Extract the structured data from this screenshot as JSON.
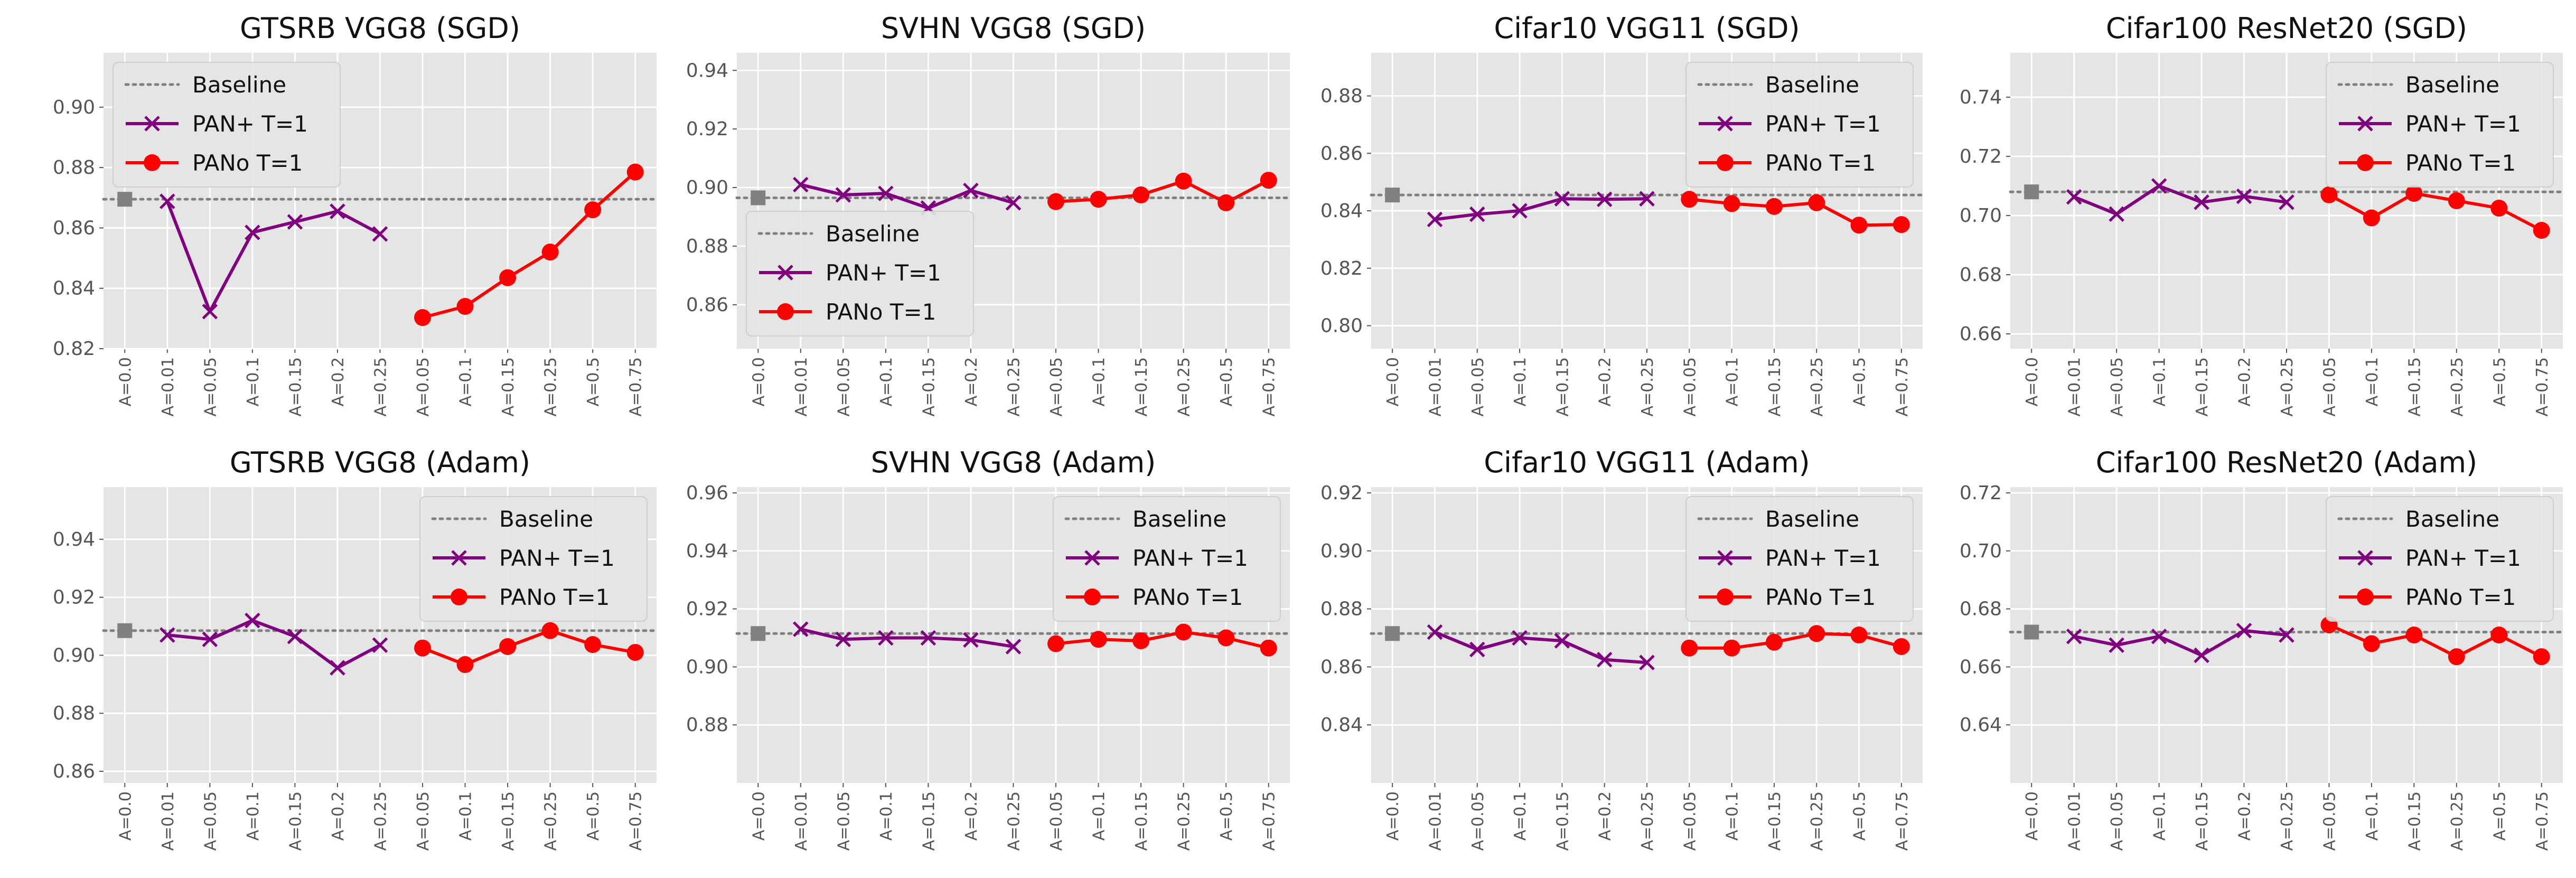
{
  "chart_data": [
    {
      "type": "line",
      "title": "GTSRB VGG8 (SGD)",
      "yticks": [
        "0.82",
        "0.84",
        "0.86",
        "0.88",
        "0.90"
      ],
      "ylim": [
        0.82,
        0.918
      ],
      "baseline": 0.8695,
      "legend": "top-left",
      "x_labels": [
        "A=0.0",
        "A=0.01",
        "A=0.05",
        "A=0.1",
        "A=0.15",
        "A=0.2",
        "A=0.25",
        "A=0.05",
        "A=0.1",
        "A=0.15",
        "A=0.25",
        "A=0.5",
        "A=0.75"
      ],
      "series": [
        {
          "name": "Baseline",
          "kind": "baseline",
          "values": [
            0.8695
          ]
        },
        {
          "name": "PAN+ T=1",
          "kind": "plus",
          "values": [
            0.8688,
            0.8323,
            0.8585,
            0.862,
            0.8655,
            0.858
          ]
        },
        {
          "name": "PANo T=1",
          "kind": "circ",
          "values": [
            0.8303,
            0.834,
            0.8435,
            0.852,
            0.866,
            0.8785
          ]
        }
      ]
    },
    {
      "type": "line",
      "title": "SVHN VGG8 (SGD)",
      "yticks": [
        "0.86",
        "0.88",
        "0.90",
        "0.92",
        "0.94"
      ],
      "ylim": [
        0.845,
        0.946
      ],
      "baseline": 0.8965,
      "legend": "middle-left",
      "x_labels": [
        "A=0.0",
        "A=0.01",
        "A=0.05",
        "A=0.1",
        "A=0.15",
        "A=0.2",
        "A=0.25",
        "A=0.05",
        "A=0.1",
        "A=0.15",
        "A=0.25",
        "A=0.5",
        "A=0.75"
      ],
      "series": [
        {
          "name": "Baseline",
          "kind": "baseline",
          "values": [
            0.8965
          ]
        },
        {
          "name": "PAN+ T=1",
          "kind": "plus",
          "values": [
            0.901,
            0.8975,
            0.898,
            0.893,
            0.899,
            0.8948
          ]
        },
        {
          "name": "PANo T=1",
          "kind": "circ",
          "values": [
            0.8952,
            0.896,
            0.8975,
            0.9022,
            0.8948,
            0.9025
          ]
        }
      ]
    },
    {
      "type": "line",
      "title": "Cifar10 VGG11 (SGD)",
      "yticks": [
        "0.80",
        "0.82",
        "0.84",
        "0.86",
        "0.88"
      ],
      "ylim": [
        0.792,
        0.895
      ],
      "baseline": 0.8455,
      "legend": "top-right",
      "x_labels": [
        "A=0.0",
        "A=0.01",
        "A=0.05",
        "A=0.1",
        "A=0.15",
        "A=0.2",
        "A=0.25",
        "A=0.05",
        "A=0.1",
        "A=0.15",
        "A=0.25",
        "A=0.5",
        "A=0.75"
      ],
      "series": [
        {
          "name": "Baseline",
          "kind": "baseline",
          "values": [
            0.8455
          ]
        },
        {
          "name": "PAN+ T=1",
          "kind": "plus",
          "values": [
            0.837,
            0.8388,
            0.84,
            0.8442,
            0.844,
            0.8442
          ]
        },
        {
          "name": "PANo T=1",
          "kind": "circ",
          "values": [
            0.844,
            0.8425,
            0.8415,
            0.8428,
            0.835,
            0.8352
          ]
        }
      ]
    },
    {
      "type": "line",
      "title": "Cifar100 ResNet20 (SGD)",
      "yticks": [
        "0.66",
        "0.68",
        "0.70",
        "0.72",
        "0.74"
      ],
      "ylim": [
        0.655,
        0.755
      ],
      "baseline": 0.708,
      "legend": "top-right",
      "x_labels": [
        "A=0.0",
        "A=0.01",
        "A=0.05",
        "A=0.1",
        "A=0.15",
        "A=0.2",
        "A=0.25",
        "A=0.05",
        "A=0.1",
        "A=0.15",
        "A=0.25",
        "A=0.5",
        "A=0.75"
      ],
      "series": [
        {
          "name": "Baseline",
          "kind": "baseline",
          "values": [
            0.708
          ]
        },
        {
          "name": "PAN+ T=1",
          "kind": "plus",
          "values": [
            0.7063,
            0.7005,
            0.71,
            0.7045,
            0.7065,
            0.7045
          ]
        },
        {
          "name": "PANo T=1",
          "kind": "circ",
          "values": [
            0.707,
            0.6992,
            0.7075,
            0.705,
            0.7025,
            0.695
          ]
        }
      ]
    },
    {
      "type": "line",
      "title": "GTSRB VGG8 (Adam)",
      "yticks": [
        "0.86",
        "0.88",
        "0.90",
        "0.92",
        "0.94"
      ],
      "ylim": [
        0.856,
        0.958
      ],
      "baseline": 0.9085,
      "legend": "top-right",
      "x_labels": [
        "A=0.0",
        "A=0.01",
        "A=0.05",
        "A=0.1",
        "A=0.15",
        "A=0.2",
        "A=0.25",
        "A=0.05",
        "A=0.1",
        "A=0.15",
        "A=0.25",
        "A=0.5",
        "A=0.75"
      ],
      "series": [
        {
          "name": "Baseline",
          "kind": "baseline",
          "values": [
            0.9085
          ]
        },
        {
          "name": "PAN+ T=1",
          "kind": "plus",
          "values": [
            0.907,
            0.9055,
            0.912,
            0.9065,
            0.8957,
            0.9035
          ]
        },
        {
          "name": "PANo T=1",
          "kind": "circ",
          "values": [
            0.9025,
            0.8968,
            0.903,
            0.9085,
            0.9037,
            0.901
          ]
        }
      ]
    },
    {
      "type": "line",
      "title": "SVHN VGG8 (Adam)",
      "yticks": [
        "0.88",
        "0.90",
        "0.92",
        "0.94",
        "0.96"
      ],
      "ylim": [
        0.86,
        0.962
      ],
      "baseline": 0.9115,
      "legend": "top-right",
      "x_labels": [
        "A=0.0",
        "A=0.01",
        "A=0.05",
        "A=0.1",
        "A=0.15",
        "A=0.2",
        "A=0.25",
        "A=0.05",
        "A=0.1",
        "A=0.15",
        "A=0.25",
        "A=0.5",
        "A=0.75"
      ],
      "series": [
        {
          "name": "Baseline",
          "kind": "baseline",
          "values": [
            0.9115
          ]
        },
        {
          "name": "PAN+ T=1",
          "kind": "plus",
          "values": [
            0.913,
            0.9095,
            0.91,
            0.91,
            0.9093,
            0.907
          ]
        },
        {
          "name": "PANo T=1",
          "kind": "circ",
          "values": [
            0.908,
            0.9095,
            0.909,
            0.912,
            0.91,
            0.9065
          ]
        }
      ]
    },
    {
      "type": "line",
      "title": "Cifar10 VGG11 (Adam)",
      "yticks": [
        "0.84",
        "0.86",
        "0.88",
        "0.90",
        "0.92"
      ],
      "ylim": [
        0.82,
        0.922
      ],
      "baseline": 0.8715,
      "legend": "top-right",
      "x_labels": [
        "A=0.0",
        "A=0.01",
        "A=0.05",
        "A=0.1",
        "A=0.15",
        "A=0.2",
        "A=0.25",
        "A=0.05",
        "A=0.1",
        "A=0.15",
        "A=0.25",
        "A=0.5",
        "A=0.75"
      ],
      "series": [
        {
          "name": "Baseline",
          "kind": "baseline",
          "values": [
            0.8715
          ]
        },
        {
          "name": "PAN+ T=1",
          "kind": "plus",
          "values": [
            0.872,
            0.866,
            0.87,
            0.869,
            0.8625,
            0.8615
          ]
        },
        {
          "name": "PANo T=1",
          "kind": "circ",
          "values": [
            0.8665,
            0.8665,
            0.8685,
            0.8715,
            0.871,
            0.867
          ]
        }
      ]
    },
    {
      "type": "line",
      "title": "Cifar100 ResNet20 (Adam)",
      "yticks": [
        "0.64",
        "0.66",
        "0.68",
        "0.70",
        "0.72"
      ],
      "ylim": [
        0.62,
        0.722
      ],
      "baseline": 0.672,
      "legend": "top-right",
      "x_labels": [
        "A=0.0",
        "A=0.01",
        "A=0.05",
        "A=0.1",
        "A=0.15",
        "A=0.2",
        "A=0.25",
        "A=0.05",
        "A=0.1",
        "A=0.15",
        "A=0.25",
        "A=0.5",
        "A=0.75"
      ],
      "series": [
        {
          "name": "Baseline",
          "kind": "baseline",
          "values": [
            0.672
          ]
        },
        {
          "name": "PAN+ T=1",
          "kind": "plus",
          "values": [
            0.6705,
            0.6675,
            0.6705,
            0.664,
            0.6725,
            0.671
          ]
        },
        {
          "name": "PANo T=1",
          "kind": "circ",
          "values": [
            0.6745,
            0.668,
            0.671,
            0.6635,
            0.671,
            0.6635
          ]
        }
      ]
    }
  ],
  "colors": {
    "plot_bg": "#e5e5e5",
    "grid": "#ffffff",
    "baseline": "#808080",
    "pan_plus": "#800080",
    "pan_circ": "#ff0000"
  }
}
